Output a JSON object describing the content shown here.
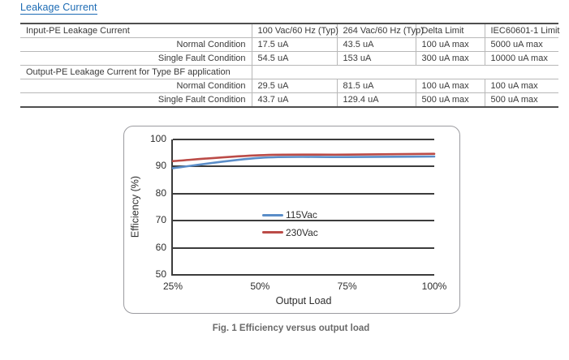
{
  "page": {
    "heading": "Leakage Current",
    "caption": "Fig. 1 Efficiency versus output load"
  },
  "colors": {
    "heading_blue": "#1c6bb4",
    "caption_gray": "#6a6a6a",
    "grid": "#3c3c3c",
    "line_115vac": "#5a8dc8",
    "line_230vac": "#bb4b47"
  },
  "table": {
    "rows": [
      {
        "label": "Input-PE Leakage Current",
        "cells": [
          "100 Vac/60 Hz (Typ)",
          "264 Vac/60 Hz (Typ)",
          "Delta Limit",
          "IEC60601-1 Limit"
        ]
      },
      {
        "label": "Normal Condition",
        "cells": [
          "17.5 uA",
          "43.5 uA",
          "100 uA max",
          "5000 uA max"
        ]
      },
      {
        "label": "Single Fault Condition",
        "cells": [
          "54.5 uA",
          "153 uA",
          "300 uA max",
          "10000 uA max"
        ]
      },
      {
        "label": "Output-PE Leakage Current for Type BF application",
        "cells": [
          ""
        ]
      },
      {
        "label": "Normal Condition",
        "cells": [
          "29.5 uA",
          "81.5 uA",
          "100 uA max",
          "100 uA max"
        ]
      },
      {
        "label": "Single Fault Condition",
        "cells": [
          "43.7 uA",
          "129.4 uA",
          "500 uA max",
          "500 uA max"
        ]
      }
    ]
  },
  "chart_data": {
    "type": "line",
    "title": "",
    "xlabel": "Output Load",
    "ylabel": "Efficiency (%)",
    "x": [
      "25%",
      "50%",
      "75%",
      "100%"
    ],
    "x_values": [
      25,
      50,
      75,
      100
    ],
    "ylim": [
      50,
      100
    ],
    "yticks": [
      50,
      60,
      70,
      80,
      90,
      100
    ],
    "grid": true,
    "legend_position": "center",
    "series": [
      {
        "name": "115Vac",
        "color": "#5a8dc8",
        "values": [
          89.4,
          93.2,
          93.5,
          93.7
        ]
      },
      {
        "name": "230Vac",
        "color": "#bb4b47",
        "values": [
          92.0,
          94.2,
          94.4,
          94.7
        ]
      }
    ]
  }
}
